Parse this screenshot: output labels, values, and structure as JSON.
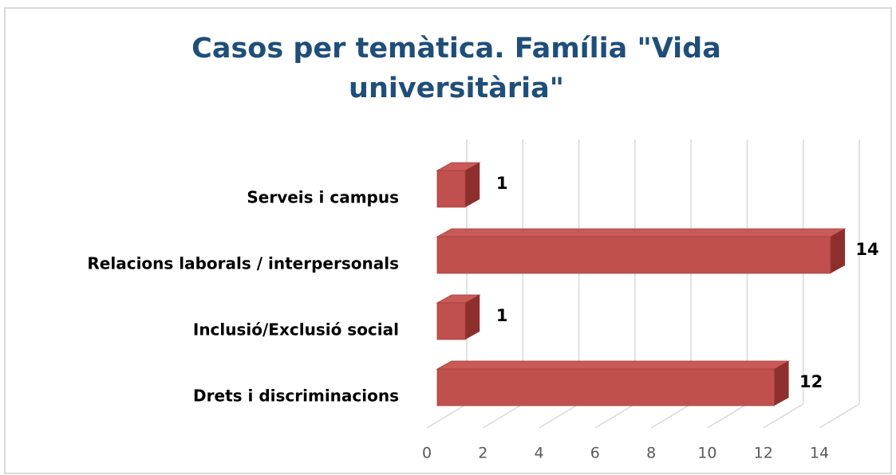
{
  "chart_data": {
    "type": "bar3d_horizontal",
    "title": "Casos per temàtica. Família \"Vida universitària\"",
    "categories": [
      "Serveis i campus",
      "Relacions laborals / interpersonals",
      "Inclusió/Exclusió social",
      "Drets i discriminacions"
    ],
    "values": [
      1,
      14,
      1,
      12
    ],
    "color": "#c0504d",
    "xlim": [
      0,
      14
    ],
    "xticks": [
      0,
      2,
      4,
      6,
      8,
      10,
      12,
      14
    ],
    "grid": true
  }
}
